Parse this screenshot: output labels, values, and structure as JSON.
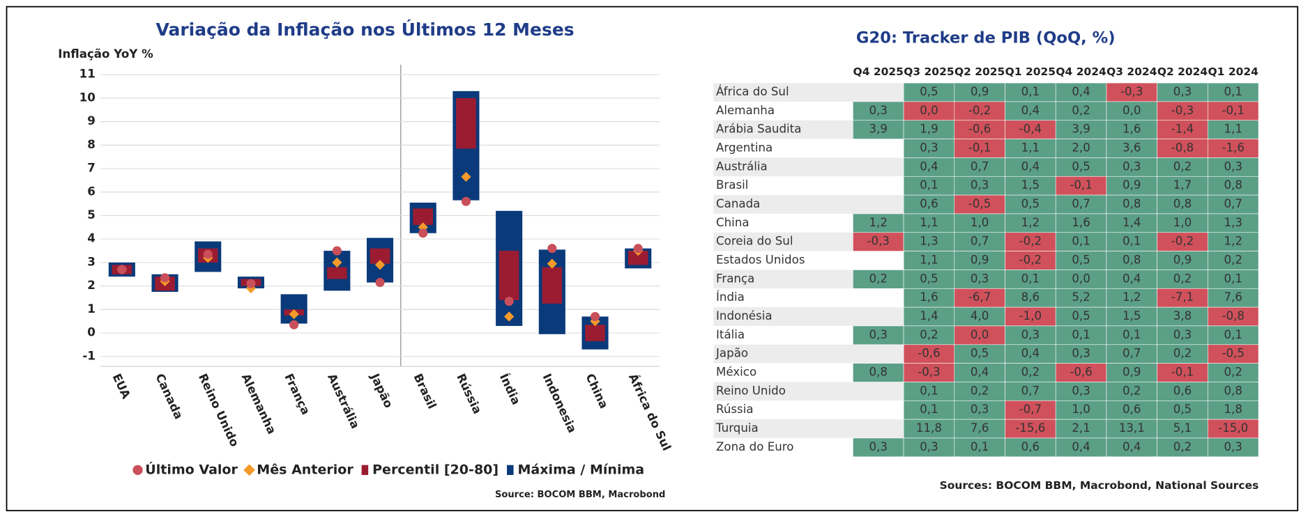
{
  "chart_data": {
    "type": "floating_bar",
    "title": "Variação da Inflação nos Últimos 12 Meses",
    "y_label": "Inflação YoY %",
    "source": "Source: BOCOM BBM, Macrobond",
    "categories": [
      "EUA",
      "Canada",
      "Reino Unido",
      "Alemanha",
      "França",
      "Austrália",
      "Japão",
      "Brasil",
      "Rússia",
      "Índia",
      "Indonesia",
      "China",
      "África do Sul"
    ],
    "ylim": [
      -1,
      11
    ],
    "yticks": [
      -1,
      0,
      1,
      2,
      3,
      4,
      5,
      6,
      7,
      8,
      9,
      10,
      11
    ],
    "grid": true,
    "legend": "bottom",
    "series": [
      {
        "name": "Último Valor",
        "color": "#c9505a",
        "values": [
          2.7,
          2.35,
          3.35,
          2.1,
          0.35,
          3.5,
          2.15,
          4.25,
          5.6,
          1.35,
          3.6,
          0.7,
          3.6
        ]
      },
      {
        "name": "Mês Anterior",
        "color": "#f39a2a",
        "values": [
          2.7,
          2.2,
          3.2,
          1.9,
          0.8,
          3.0,
          2.9,
          4.5,
          6.65,
          0.7,
          2.95,
          0.5,
          3.5
        ]
      },
      {
        "name": "Percentil [20-80]",
        "color": "#9b1c31",
        "low": [
          2.5,
          1.8,
          3.0,
          2.0,
          0.75,
          2.3,
          2.95,
          4.6,
          7.85,
          1.4,
          1.25,
          -0.35,
          2.9
        ],
        "high": [
          2.9,
          2.4,
          3.6,
          2.3,
          1.0,
          2.8,
          3.6,
          5.3,
          10.0,
          3.5,
          2.8,
          0.35,
          3.5
        ]
      },
      {
        "name": "Máxima / Mínima",
        "color": "#0a3a7a",
        "low": [
          2.4,
          1.75,
          2.6,
          1.9,
          0.4,
          1.8,
          2.15,
          4.25,
          5.65,
          0.3,
          -0.05,
          -0.7,
          2.75
        ],
        "high": [
          3.0,
          2.5,
          3.9,
          2.4,
          1.65,
          3.5,
          4.05,
          5.55,
          10.3,
          5.2,
          3.55,
          0.7,
          3.6
        ]
      }
    ]
  },
  "table": {
    "title": "G20: Tracker de PIB (QoQ, %)",
    "source": "Sources: BOCOM BBM, Macrobond, National Sources",
    "columns": [
      "Q4 2025",
      "Q3 2025",
      "Q2 2025",
      "Q1 2025",
      "Q4 2024",
      "Q3 2024",
      "Q2 2024",
      "Q1 2024"
    ],
    "palette": {
      "g": "#5b9f87",
      "r": "#d0515b"
    },
    "rows": [
      {
        "name": "África do Sul",
        "cells": [
          null,
          "0,5",
          "0,9",
          "0,1",
          "0,4",
          "-0,3",
          "0,3",
          "0,1"
        ],
        "colors": [
          null,
          "g",
          "g",
          "g",
          "g",
          "r",
          "g",
          "g"
        ]
      },
      {
        "name": "Alemanha",
        "cells": [
          "0,3",
          "0,0",
          "-0,2",
          "0,4",
          "0,2",
          "0,0",
          "-0,3",
          "-0,1"
        ],
        "colors": [
          "g",
          "r",
          "r",
          "g",
          "g",
          "g",
          "r",
          "r"
        ]
      },
      {
        "name": "Arábia Saudita",
        "cells": [
          "3,9",
          "1,9",
          "-0,6",
          "-0,4",
          "3,9",
          "1,6",
          "-1,4",
          "1,1"
        ],
        "colors": [
          "g",
          "g",
          "r",
          "r",
          "g",
          "g",
          "r",
          "g"
        ]
      },
      {
        "name": "Argentina",
        "cells": [
          null,
          "0,3",
          "-0,1",
          "1,1",
          "2,0",
          "3,6",
          "-0,8",
          "-1,6"
        ],
        "colors": [
          null,
          "g",
          "r",
          "g",
          "g",
          "g",
          "r",
          "r"
        ]
      },
      {
        "name": "Austrália",
        "cells": [
          null,
          "0,4",
          "0,7",
          "0,4",
          "0,5",
          "0,3",
          "0,2",
          "0,3"
        ],
        "colors": [
          null,
          "g",
          "g",
          "g",
          "g",
          "g",
          "g",
          "g"
        ]
      },
      {
        "name": "Brasil",
        "cells": [
          null,
          "0,1",
          "0,3",
          "1,5",
          "-0,1",
          "0,9",
          "1,7",
          "0,8"
        ],
        "colors": [
          null,
          "g",
          "g",
          "g",
          "r",
          "g",
          "g",
          "g"
        ]
      },
      {
        "name": "Canada",
        "cells": [
          null,
          "0,6",
          "-0,5",
          "0,5",
          "0,7",
          "0,8",
          "0,8",
          "0,7"
        ],
        "colors": [
          null,
          "g",
          "r",
          "g",
          "g",
          "g",
          "g",
          "g"
        ]
      },
      {
        "name": "China",
        "cells": [
          "1,2",
          "1,1",
          "1,0",
          "1,2",
          "1,6",
          "1,4",
          "1,0",
          "1,3"
        ],
        "colors": [
          "g",
          "g",
          "g",
          "g",
          "g",
          "g",
          "g",
          "g"
        ]
      },
      {
        "name": "Coreia do Sul",
        "cells": [
          "-0,3",
          "1,3",
          "0,7",
          "-0,2",
          "0,1",
          "0,1",
          "-0,2",
          "1,2"
        ],
        "colors": [
          "r",
          "g",
          "g",
          "r",
          "g",
          "g",
          "r",
          "g"
        ]
      },
      {
        "name": "Estados Unidos",
        "cells": [
          null,
          "1,1",
          "0,9",
          "-0,2",
          "0,5",
          "0,8",
          "0,9",
          "0,2"
        ],
        "colors": [
          null,
          "g",
          "g",
          "r",
          "g",
          "g",
          "g",
          "g"
        ]
      },
      {
        "name": "França",
        "cells": [
          "0,2",
          "0,5",
          "0,3",
          "0,1",
          "0,0",
          "0,4",
          "0,2",
          "0,1"
        ],
        "colors": [
          "g",
          "g",
          "g",
          "g",
          "g",
          "g",
          "g",
          "g"
        ]
      },
      {
        "name": "Índia",
        "cells": [
          null,
          "1,6",
          "-6,7",
          "8,6",
          "5,2",
          "1,2",
          "-7,1",
          "7,6"
        ],
        "colors": [
          null,
          "g",
          "r",
          "g",
          "g",
          "g",
          "r",
          "g"
        ]
      },
      {
        "name": "Indonésia",
        "cells": [
          null,
          "1,4",
          "4,0",
          "-1,0",
          "0,5",
          "1,5",
          "3,8",
          "-0,8"
        ],
        "colors": [
          null,
          "g",
          "g",
          "r",
          "g",
          "g",
          "g",
          "r"
        ]
      },
      {
        "name": "Itália",
        "cells": [
          "0,3",
          "0,2",
          "0,0",
          "0,3",
          "0,1",
          "0,1",
          "0,3",
          "0,1"
        ],
        "colors": [
          "g",
          "g",
          "r",
          "g",
          "g",
          "g",
          "g",
          "g"
        ]
      },
      {
        "name": "Japão",
        "cells": [
          null,
          "-0,6",
          "0,5",
          "0,4",
          "0,3",
          "0,7",
          "0,2",
          "-0,5"
        ],
        "colors": [
          null,
          "r",
          "g",
          "g",
          "g",
          "g",
          "g",
          "r"
        ]
      },
      {
        "name": "México",
        "cells": [
          "0,8",
          "-0,3",
          "0,4",
          "0,2",
          "-0,6",
          "0,9",
          "-0,1",
          "0,2"
        ],
        "colors": [
          "g",
          "r",
          "g",
          "g",
          "r",
          "g",
          "r",
          "g"
        ]
      },
      {
        "name": "Reino Unido",
        "cells": [
          null,
          "0,1",
          "0,2",
          "0,7",
          "0,3",
          "0,2",
          "0,6",
          "0,8"
        ],
        "colors": [
          null,
          "g",
          "g",
          "g",
          "g",
          "g",
          "g",
          "g"
        ]
      },
      {
        "name": "Rússia",
        "cells": [
          null,
          "0,1",
          "0,3",
          "-0,7",
          "1,0",
          "0,6",
          "0,5",
          "1,8"
        ],
        "colors": [
          null,
          "g",
          "g",
          "r",
          "g",
          "g",
          "g",
          "g"
        ]
      },
      {
        "name": "Turquia",
        "cells": [
          null,
          "11,8",
          "7,6",
          "-15,6",
          "2,1",
          "13,1",
          "5,1",
          "-15,0"
        ],
        "colors": [
          null,
          "g",
          "g",
          "r",
          "g",
          "g",
          "g",
          "r"
        ]
      },
      {
        "name": "Zona do Euro",
        "cells": [
          "0,3",
          "0,3",
          "0,1",
          "0,6",
          "0,4",
          "0,4",
          "0,2",
          "0,3"
        ],
        "colors": [
          "g",
          "g",
          "g",
          "g",
          "g",
          "g",
          "g",
          "g"
        ]
      }
    ]
  }
}
